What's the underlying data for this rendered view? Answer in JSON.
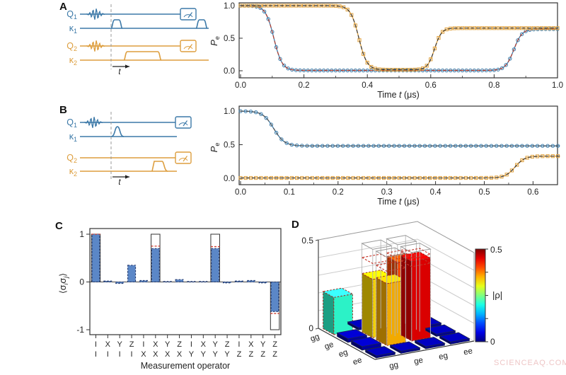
{
  "panels": {
    "a": "A",
    "b": "B",
    "c": "C",
    "d": "D"
  },
  "watermark": {
    "text": "SCIENCEAQ.COM",
    "color": "#eec6c6"
  },
  "colors": {
    "qubit1_blue": "#3c79a8",
    "qubit2_orange": "#dd9e3e",
    "bar_blue": "#5b87c7",
    "bar_edge_navy": "#20366b",
    "fit_red": "#c0392b",
    "axis": "#333333"
  },
  "pulse_a": {
    "rows": [
      {
        "label": [
          {
            "t": "Q"
          },
          {
            "t": "1",
            "sub": true
          }
        ],
        "color": "#3c79a8"
      },
      {
        "label": [
          {
            "t": "κ"
          },
          {
            "t": "1",
            "sub": true
          }
        ],
        "color": "#3c79a8"
      },
      {
        "label": [
          {
            "t": "Q"
          },
          {
            "t": "2",
            "sub": true
          }
        ],
        "color": "#dd9e3e"
      },
      {
        "label": [
          {
            "t": "κ"
          },
          {
            "t": "2",
            "sub": true
          }
        ],
        "color": "#dd9e3e"
      }
    ],
    "t_label": [
      {
        "t": "t",
        "i": true
      }
    ]
  },
  "pulse_b": {
    "rows": [
      {
        "label": [
          {
            "t": "Q"
          },
          {
            "t": "1",
            "sub": true
          }
        ],
        "color": "#3c79a8"
      },
      {
        "label": [
          {
            "t": "κ"
          },
          {
            "t": "1",
            "sub": true
          }
        ],
        "color": "#3c79a8"
      },
      {
        "label": [
          {
            "t": "Q"
          },
          {
            "t": "2",
            "sub": true
          }
        ],
        "color": "#dd9e3e"
      },
      {
        "label": [
          {
            "t": "κ"
          },
          {
            "t": "2",
            "sub": true
          }
        ],
        "color": "#dd9e3e"
      }
    ],
    "t_label": [
      {
        "t": "t",
        "i": true
      }
    ]
  },
  "chart_data": [
    {
      "type": "line",
      "panel": "A",
      "xlabel_parts": [
        {
          "t": "Time "
        },
        {
          "t": "t",
          "i": true
        },
        {
          "t": " (μs)"
        }
      ],
      "ylabel_parts": [
        {
          "t": "P",
          "i": true
        },
        {
          "t": "e",
          "sub": true
        }
      ],
      "xlim": [
        0,
        1.0
      ],
      "ylim": [
        0,
        1.0
      ],
      "x_ticks": [
        "0.0",
        "0.2",
        "0.4",
        "0.6",
        "0.8",
        "1.0"
      ],
      "y_ticks": [
        "0.0",
        "0.5",
        "1.0"
      ],
      "grid": false,
      "legend": "none",
      "series": [
        {
          "name": "qubit-1-Pe",
          "color": "#3f7fad",
          "fit_color": "#b03b2e",
          "marker": "circle",
          "marker_step": 0.0125,
          "model": {
            "start": 1.0,
            "transitions": [
              {
                "t": 0.105,
                "w": 0.013,
                "to": 0.005
              },
              {
                "t": 0.862,
                "w": 0.013,
                "to": 0.64
              }
            ]
          }
        },
        {
          "name": "qubit-2-Pe",
          "color": "#e0a13e",
          "fit_color": "#3a3a3a",
          "marker": "square",
          "marker_step": 0.0125,
          "model": {
            "start": 1.0,
            "transitions": [
              {
                "t": 0.373,
                "w": 0.013,
                "to": 0.015
              },
              {
                "t": 0.612,
                "w": 0.011,
                "to": 0.655
              }
            ]
          }
        }
      ]
    },
    {
      "type": "line",
      "panel": "B",
      "xlabel_parts": [
        {
          "t": "Time "
        },
        {
          "t": "t",
          "i": true
        },
        {
          "t": " (μs)"
        }
      ],
      "ylabel_parts": [
        {
          "t": "P",
          "i": true
        },
        {
          "t": "e",
          "sub": true
        }
      ],
      "xlim": [
        0,
        0.655
      ],
      "ylim": [
        0,
        1.0
      ],
      "x_ticks": [
        "0.0",
        "0.1",
        "0.2",
        "0.3",
        "0.4",
        "0.5",
        "0.6"
      ],
      "y_ticks": [
        "0.0",
        "0.5",
        "1.0"
      ],
      "grid": false,
      "legend": "none",
      "series": [
        {
          "name": "qubit-1-Pe",
          "color": "#3f7fad",
          "fit_color": "#555555",
          "marker": "circle",
          "marker_step": 0.0105,
          "model": {
            "start": 1.0,
            "transitions": [
              {
                "t": 0.068,
                "w": 0.011,
                "to": 0.482
              }
            ]
          }
        },
        {
          "name": "qubit-2-Pe",
          "color": "#e0a13e",
          "fit_color": "#3a3a3a",
          "marker": "square",
          "marker_step": 0.0105,
          "model": {
            "start": 0.005,
            "transitions": [
              {
                "t": 0.563,
                "w": 0.01,
                "to": 0.33
              }
            ]
          }
        }
      ]
    },
    {
      "type": "bar",
      "panel": "C",
      "xlabel": "Measurement operator",
      "ylabel_parts": [
        {
          "t": "⟨σ"
        },
        {
          "t": "i",
          "sub": true,
          "i": true
        },
        {
          "t": "σ"
        },
        {
          "t": "j",
          "sub": true,
          "i": true
        },
        {
          "t": "⟩"
        }
      ],
      "ylim": [
        -1,
        1
      ],
      "y_tick_labels": [
        "1",
        "0",
        "-1"
      ],
      "y_tick_values": [
        1,
        0,
        -1
      ],
      "categories_top": [
        "I",
        "X",
        "Y",
        "Z",
        "I",
        "X",
        "Y",
        "Z",
        "I",
        "X",
        "Y",
        "Z",
        "I",
        "X",
        "Y",
        "Z"
      ],
      "categories_bottom": [
        "I",
        "I",
        "I",
        "I",
        "X",
        "X",
        "X",
        "X",
        "Y",
        "Y",
        "Y",
        "Y",
        "Z",
        "Z",
        "Z",
        "Z"
      ],
      "values": [
        1.0,
        0.02,
        -0.03,
        0.35,
        0.03,
        0.7,
        0.01,
        0.05,
        0.01,
        0.01,
        0.7,
        -0.02,
        0.02,
        0.03,
        -0.02,
        -0.62
      ],
      "ideal": [
        1,
        0,
        0,
        0,
        0,
        1,
        0,
        0,
        0,
        0,
        1,
        0,
        0,
        0,
        0,
        -1
      ],
      "fit_levels": [
        1.0,
        0,
        0,
        0,
        0,
        0.75,
        0,
        0,
        0,
        0,
        0.74,
        0,
        0,
        0,
        0,
        -0.66
      ]
    },
    {
      "type": "bar3d",
      "panel": "D",
      "zlim": [
        0,
        0.5
      ],
      "z_tick_top": "0.5",
      "z_tick_bottom": "0",
      "row_labels": [
        "gg",
        "ge",
        "eg",
        "ee"
      ],
      "col_labels": [
        "gg",
        "ge",
        "eg",
        "ee"
      ],
      "values": [
        [
          0.21,
          0.012,
          0.012,
          0.012
        ],
        [
          0.02,
          0.33,
          0.4,
          0.012
        ],
        [
          0.02,
          0.35,
          0.45,
          0.012
        ],
        [
          0.012,
          0.012,
          0.012,
          0.012
        ]
      ],
      "ideal_cells": [
        [
          1,
          1
        ],
        [
          1,
          2
        ],
        [
          2,
          1
        ],
        [
          2,
          2
        ]
      ],
      "ideal_value": 0.5,
      "fit_ring_value": 0.42,
      "fit_cells": [
        [
          2,
          2
        ]
      ],
      "fit_value": 0.47,
      "colorbar": {
        "label": "|ρ|",
        "tick_top": "0.5",
        "tick_bottom": "0"
      }
    }
  ]
}
